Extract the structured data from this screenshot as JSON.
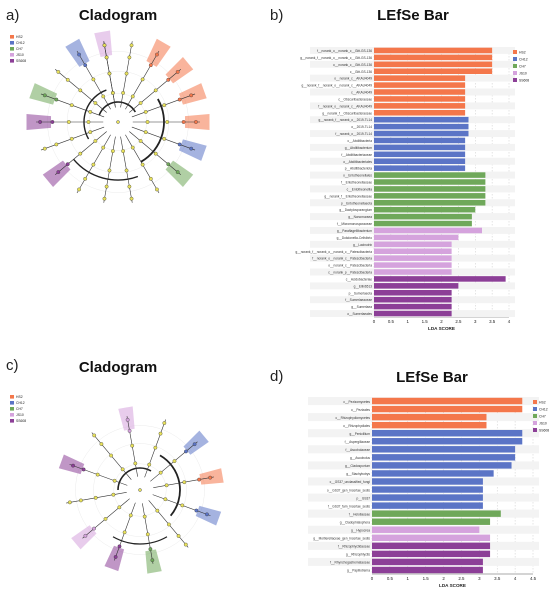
{
  "panels": {
    "a": {
      "letter": "a)",
      "title": "Cladogram"
    },
    "b": {
      "letter": "b)",
      "title": "LEfSe Bar"
    },
    "c": {
      "letter": "c)",
      "title": "Cladogram"
    },
    "d": {
      "letter": "d)",
      "title": "LEfSe Bar"
    }
  },
  "group_colors": {
    "HS2": "#f4774b",
    "CH12": "#5b74c6",
    "CH7": "#6fa85a",
    "JS10": "#d5a3dd",
    "SS608": "#8c3f97"
  },
  "cladogram_a_legend": [
    "HS2",
    "CH12",
    "CH7",
    "JS10",
    "SS608"
  ],
  "cladogram_c_legend": [
    "HS2",
    "CH12",
    "CH7",
    "JS10",
    "SS608"
  ],
  "chart_data": [
    {
      "type": "bar",
      "panel": "b",
      "title": "LEfSe Bar",
      "xlabel": "LDA SCORE",
      "xlim": [
        0,
        4
      ],
      "xticks": [
        "0",
        "0.5",
        "1",
        "1.5",
        "2",
        "2.5",
        "3",
        "3.5",
        "4"
      ],
      "legend": [
        "HS2",
        "CH12",
        "CH7",
        "JS10",
        "SS608"
      ],
      "bars": [
        {
          "label": "f__norank_o__norank_c__Gitt-GS-136",
          "value": 3.5,
          "group": "HS2"
        },
        {
          "label": "g__norank_f__norank_o__norank_c__Gitt-GS-136",
          "value": 3.5,
          "group": "HS2"
        },
        {
          "label": "o__norank_c__Gitt-GS-136",
          "value": 3.5,
          "group": "HS2"
        },
        {
          "label": "c__Gitt-GS-136",
          "value": 3.5,
          "group": "HS2"
        },
        {
          "label": "o__norank_c__AKAU4049",
          "value": 2.7,
          "group": "HS2"
        },
        {
          "label": "g__norank_f__norank_o__norank_c__AKAU4049",
          "value": 2.7,
          "group": "HS2"
        },
        {
          "label": "c__AKAU4049",
          "value": 2.7,
          "group": "HS2"
        },
        {
          "label": "c__Obscuribacteraceae",
          "value": 2.7,
          "group": "HS2"
        },
        {
          "label": "f__norank_o__norank_c__AKAU4049",
          "value": 2.7,
          "group": "HS2"
        },
        {
          "label": "g__norank_f__Obscuribacteraceae",
          "value": 2.7,
          "group": "HS2"
        },
        {
          "label": "g__norank_f__norank_o__2019-TL14",
          "value": 2.8,
          "group": "CH12"
        },
        {
          "label": "o__2019-TL14",
          "value": 2.8,
          "group": "CH12"
        },
        {
          "label": "f__norank_o__2019-TL14",
          "value": 2.8,
          "group": "CH12"
        },
        {
          "label": "c__Abditibacteria",
          "value": 2.7,
          "group": "CH12"
        },
        {
          "label": "g__Abditibacterium",
          "value": 2.7,
          "group": "CH12"
        },
        {
          "label": "f__Abditibacteriaceae",
          "value": 2.7,
          "group": "CH12"
        },
        {
          "label": "o__Abditibacteriales",
          "value": 2.7,
          "group": "CH12"
        },
        {
          "label": "p__Abditibacteriota",
          "value": 2.7,
          "group": "CH12"
        },
        {
          "label": "o__Entotheonellales",
          "value": 3.3,
          "group": "CH7"
        },
        {
          "label": "f__Entotheonellaceae",
          "value": 3.3,
          "group": "CH7"
        },
        {
          "label": "c__Entotheonellia",
          "value": 3.3,
          "group": "CH7"
        },
        {
          "label": "g__norank_f__Entotheonellaceae",
          "value": 3.3,
          "group": "CH7"
        },
        {
          "label": "p__Entotheonellaeota",
          "value": 3.3,
          "group": "CH7"
        },
        {
          "label": "g__Dactylosporangium",
          "value": 3.0,
          "group": "CH7"
        },
        {
          "label": "g__Nonomuraea",
          "value": 2.9,
          "group": "CH7"
        },
        {
          "label": "f__Micromonosporaceae",
          "value": 2.9,
          "group": "CH7"
        },
        {
          "label": "g__Paraflagellibacterium",
          "value": 3.2,
          "group": "JS10"
        },
        {
          "label": "g__Dokdonella-Cellvibrio",
          "value": 2.5,
          "group": "JS10"
        },
        {
          "label": "g__Lacinutrix",
          "value": 2.3,
          "group": "JS10"
        },
        {
          "label": "g__norank_f__norank_o__norank_c__Patescibacteria",
          "value": 2.3,
          "group": "JS10"
        },
        {
          "label": "f__norank_o__norank_c__Patescibacteria",
          "value": 2.3,
          "group": "JS10"
        },
        {
          "label": "o__norank_c__Patescibacteria",
          "value": 2.3,
          "group": "JS10"
        },
        {
          "label": "c__norank_p__Patescibacteria",
          "value": 2.3,
          "group": "JS10"
        },
        {
          "label": "c__Acidobacteriae",
          "value": 3.9,
          "group": "SS608"
        },
        {
          "label": "g__Ellin6513",
          "value": 2.5,
          "group": "SS608"
        },
        {
          "label": "p__Sumerlaeota",
          "value": 2.3,
          "group": "SS608"
        },
        {
          "label": "f__Sumerlaeaceae",
          "value": 2.3,
          "group": "SS608"
        },
        {
          "label": "g__Sumerlaea",
          "value": 2.3,
          "group": "SS608"
        },
        {
          "label": "o__Sumerlaeales",
          "value": 2.3,
          "group": "SS608"
        }
      ]
    },
    {
      "type": "bar",
      "panel": "d",
      "title": "LEfSe Bar",
      "xlabel": "LDA SCORE",
      "xlim": [
        0,
        4.5
      ],
      "xticks": [
        "0",
        "0.5",
        "1",
        "1.5",
        "2",
        "2.5",
        "3",
        "3.5",
        "4",
        "4.5"
      ],
      "legend": [
        "HS2",
        "CH12",
        "CH7",
        "JS10",
        "SS608"
      ],
      "bars": [
        {
          "label": "c__Pezizomycetes",
          "value": 4.2,
          "group": "HS2"
        },
        {
          "label": "o__Pezizales",
          "value": 4.2,
          "group": "HS2"
        },
        {
          "label": "c__Rhizophydiomycetes",
          "value": 3.2,
          "group": "HS2"
        },
        {
          "label": "o__Rhizophydiales",
          "value": 3.2,
          "group": "HS2"
        },
        {
          "label": "g__Penicillium",
          "value": 4.2,
          "group": "CH12"
        },
        {
          "label": "f__Aspergillaceae",
          "value": 4.2,
          "group": "CH12"
        },
        {
          "label": "f__Ascobolaceae",
          "value": 4.0,
          "group": "CH12"
        },
        {
          "label": "g__Ascobolus",
          "value": 4.0,
          "group": "CH12"
        },
        {
          "label": "g__Cladosporium",
          "value": 3.9,
          "group": "CH12"
        },
        {
          "label": "g__Stachybotrys",
          "value": 3.4,
          "group": "CH12"
        },
        {
          "label": "c__GS37_unclassified_fungi",
          "value": 3.1,
          "group": "CH12"
        },
        {
          "label": "o__GS37_gen_Incertae_sedis",
          "value": 3.1,
          "group": "CH12"
        },
        {
          "label": "p__GS37",
          "value": 3.1,
          "group": "CH12"
        },
        {
          "label": "f__GS37_fam_Incertae_sedis",
          "value": 3.1,
          "group": "CH12"
        },
        {
          "label": "f__Helotiaceae",
          "value": 3.6,
          "group": "CH7"
        },
        {
          "label": "g__Cladophialophora",
          "value": 3.3,
          "group": "CH7"
        },
        {
          "label": "g__Hypocrea",
          "value": 3.0,
          "group": "JS10"
        },
        {
          "label": "g__Mortierellaceae_gen_Incertae_sedis",
          "value": 3.3,
          "group": "JS10"
        },
        {
          "label": "f__Rhizophlyctidaceae",
          "value": 3.3,
          "group": "SS608"
        },
        {
          "label": "g__Rhizophlyctis",
          "value": 3.3,
          "group": "SS608"
        },
        {
          "label": "f__Rhynchogastremataceae",
          "value": 3.1,
          "group": "SS608"
        },
        {
          "label": "g__Papiliotrema",
          "value": 3.1,
          "group": "SS608"
        }
      ]
    }
  ]
}
